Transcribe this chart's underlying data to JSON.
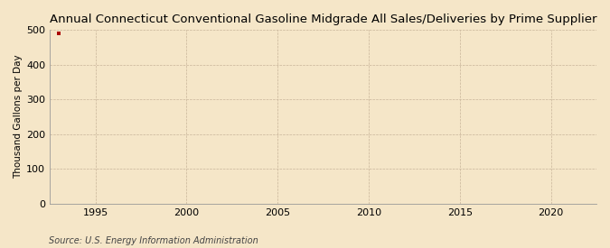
{
  "title": "Annual Connecticut Conventional Gasoline Midgrade All Sales/Deliveries by Prime Supplier",
  "ylabel": "Thousand Gallons per Day",
  "source_text": "Source: U.S. Energy Information Administration",
  "background_color": "#f5e6c8",
  "data_x": [
    1993
  ],
  "data_y": [
    490
  ],
  "data_color": "#aa0000",
  "xlim": [
    1992.5,
    2022.5
  ],
  "ylim": [
    0,
    500
  ],
  "yticks": [
    0,
    100,
    200,
    300,
    400,
    500
  ],
  "xticks": [
    1995,
    2000,
    2005,
    2010,
    2015,
    2020
  ],
  "grid_color": "#c8b49a",
  "title_fontsize": 9.5,
  "label_fontsize": 7.5,
  "tick_fontsize": 8,
  "source_fontsize": 7,
  "marker_size": 3.5,
  "line_width": 0.8,
  "spine_color": "#999999"
}
